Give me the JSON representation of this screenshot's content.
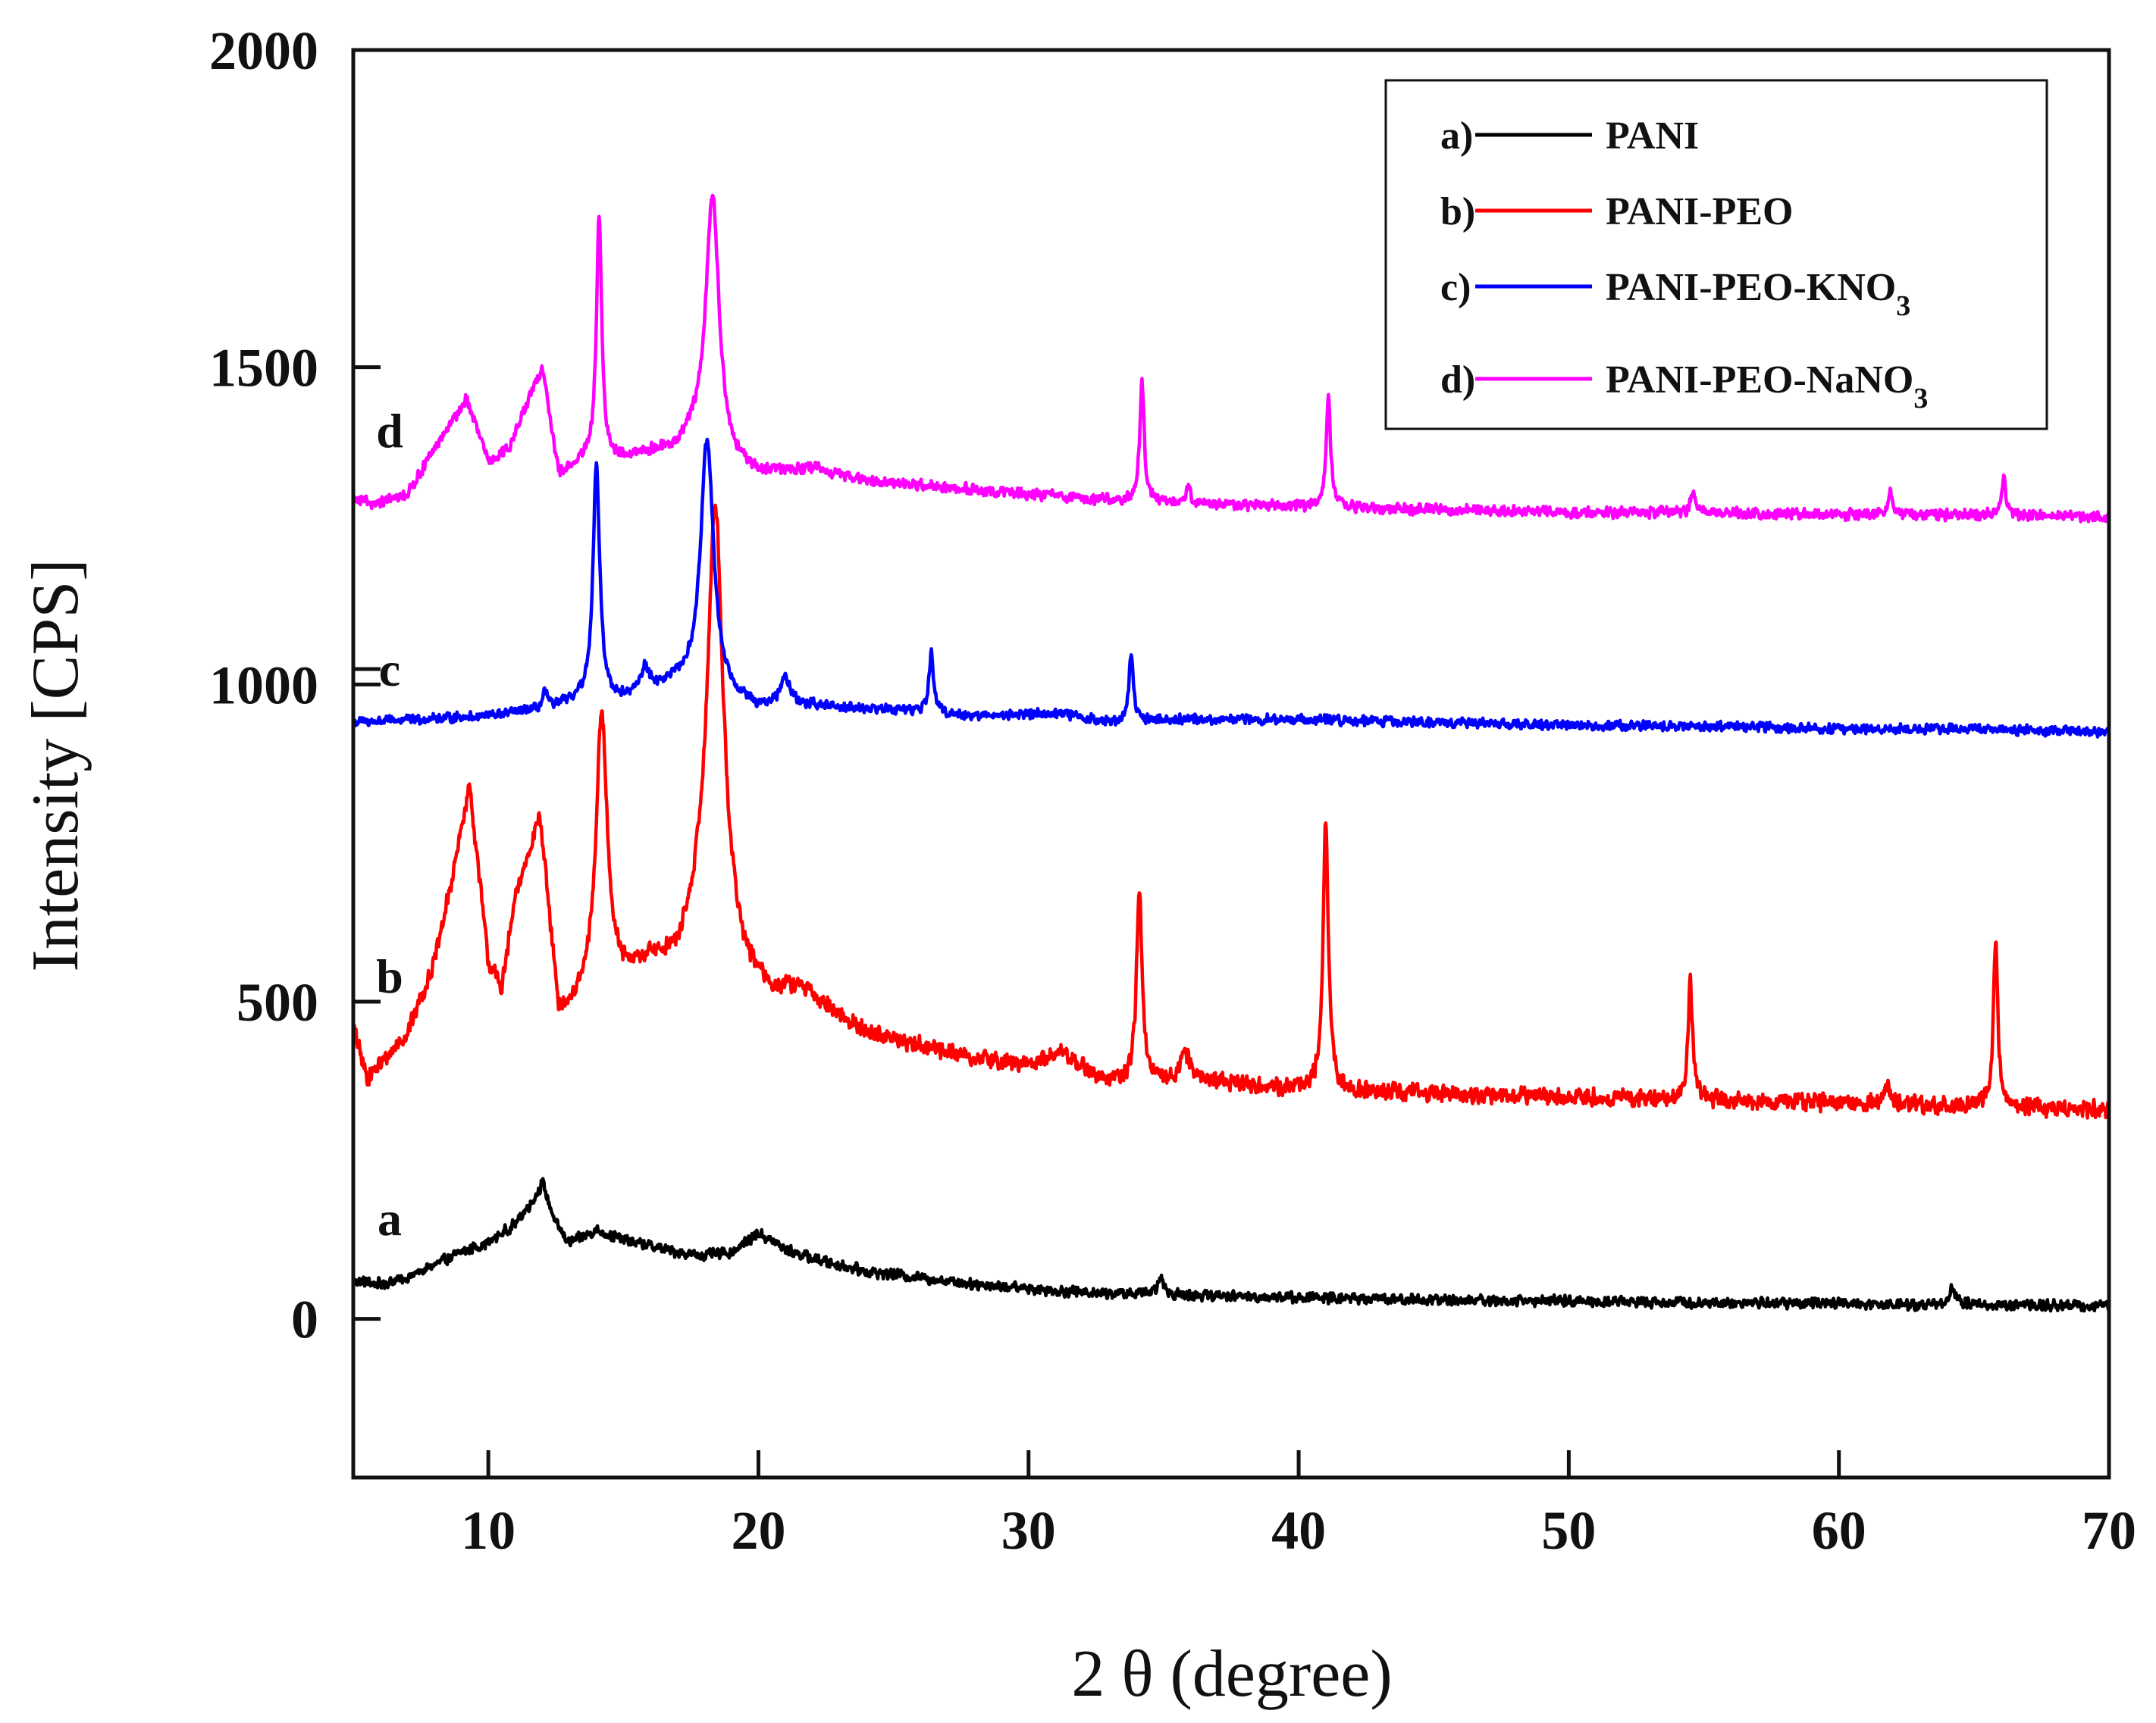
{
  "chart_data": {
    "type": "line",
    "title": "",
    "xlabel": "2 θ  (degree)",
    "ylabel": "Intensity [CPS]",
    "xlim": [
      5,
      70
    ],
    "ylim": [
      -250,
      2000
    ],
    "x_ticks": [
      10,
      20,
      30,
      40,
      50,
      60,
      70
    ],
    "y_ticks": [
      0,
      500,
      1000,
      1500,
      2000
    ],
    "legend": {
      "position": "top-right",
      "entries": [
        {
          "tag": "a)",
          "label": "PANI",
          "sub": ""
        },
        {
          "tag": "b)",
          "label": "PANI-PEO",
          "sub": ""
        },
        {
          "tag": "c)",
          "label": "PANI-PEO-KNO",
          "sub": "3"
        },
        {
          "tag": "d)",
          "label": "PANI-PEO-NaNO",
          "sub": "3"
        }
      ]
    },
    "series": [
      {
        "id": "a",
        "name": "PANI",
        "color": "#000000",
        "curve_label": "a",
        "baseline": [
          [
            5,
            60
          ],
          [
            6,
            55
          ],
          [
            7,
            65
          ],
          [
            8,
            85
          ],
          [
            9,
            105
          ],
          [
            10,
            120
          ],
          [
            11,
            150
          ],
          [
            11.7,
            190
          ],
          [
            12,
            215
          ],
          [
            12.5,
            150
          ],
          [
            13,
            120
          ],
          [
            14,
            140
          ],
          [
            15,
            125
          ],
          [
            16,
            115
          ],
          [
            17,
            105
          ],
          [
            18,
            100
          ],
          [
            19,
            105
          ],
          [
            20,
            135
          ],
          [
            21,
            110
          ],
          [
            22,
            95
          ],
          [
            24,
            75
          ],
          [
            26,
            65
          ],
          [
            28,
            55
          ],
          [
            30,
            48
          ],
          [
            32,
            42
          ],
          [
            35,
            38
          ],
          [
            40,
            34
          ],
          [
            45,
            30
          ],
          [
            50,
            28
          ],
          [
            55,
            26
          ],
          [
            60,
            24
          ],
          [
            65,
            22
          ],
          [
            70,
            20
          ]
        ],
        "peaks": [
          [
            34.9,
            25,
            0.15
          ],
          [
            64.2,
            25,
            0.15
          ]
        ],
        "noise": 10
      },
      {
        "id": "b",
        "name": "PANI-PEO",
        "color": "#ff0000",
        "curve_label": "b",
        "baseline": [
          [
            5,
            460
          ],
          [
            5.5,
            380
          ],
          [
            6,
            400
          ],
          [
            7,
            450
          ],
          [
            8,
            560
          ],
          [
            8.7,
            700
          ],
          [
            9.3,
            840
          ],
          [
            10,
            560
          ],
          [
            10.5,
            520
          ],
          [
            11,
            660
          ],
          [
            11.9,
            790
          ],
          [
            12.6,
            480
          ],
          [
            13.2,
            490
          ],
          [
            14,
            520
          ],
          [
            15,
            530
          ],
          [
            16,
            560
          ],
          [
            17,
            560
          ],
          [
            17.8,
            620
          ],
          [
            18.5,
            620
          ],
          [
            19.5,
            540
          ],
          [
            20.5,
            510
          ],
          [
            21.5,
            520
          ],
          [
            22.5,
            490
          ],
          [
            24,
            450
          ],
          [
            26,
            430
          ],
          [
            28,
            410
          ],
          [
            30,
            400
          ],
          [
            31.3,
            420
          ],
          [
            32.5,
            380
          ],
          [
            34,
            370
          ],
          [
            36,
            380
          ],
          [
            38,
            370
          ],
          [
            40,
            360
          ],
          [
            45,
            355
          ],
          [
            50,
            350
          ],
          [
            55,
            345
          ],
          [
            60,
            340
          ],
          [
            65,
            335
          ],
          [
            70,
            330
          ]
        ],
        "peaks": [
          [
            14.2,
            430,
            0.25
          ],
          [
            18.4,
            660,
            0.35
          ],
          [
            34.1,
            310,
            0.12
          ],
          [
            35.8,
            40,
            0.2
          ],
          [
            41.0,
            420,
            0.12
          ],
          [
            54.5,
            190,
            0.1
          ],
          [
            61.8,
            25,
            0.2
          ],
          [
            65.8,
            260,
            0.1
          ]
        ],
        "noise": 16
      },
      {
        "id": "c",
        "name": "PANI-PEO-KNO3",
        "color": "#0000ff",
        "curve_label": "c",
        "baseline": [
          [
            5,
            940
          ],
          [
            10,
            950
          ],
          [
            12,
            960
          ],
          [
            13.5,
            975
          ],
          [
            15,
            975
          ],
          [
            16,
            990
          ],
          [
            17,
            1000
          ],
          [
            18,
            1000
          ],
          [
            19,
            980
          ],
          [
            20,
            960
          ],
          [
            22,
            965
          ],
          [
            25,
            960
          ],
          [
            28,
            950
          ],
          [
            31,
            955
          ],
          [
            33,
            940
          ],
          [
            35,
            945
          ],
          [
            40,
            945
          ],
          [
            45,
            940
          ],
          [
            50,
            935
          ],
          [
            55,
            935
          ],
          [
            60,
            930
          ],
          [
            65,
            930
          ],
          [
            70,
            925
          ]
        ],
        "peaks": [
          [
            14.0,
            370,
            0.15
          ],
          [
            18.1,
            390,
            0.28
          ],
          [
            15.8,
            35,
            0.2
          ],
          [
            21.0,
            45,
            0.25
          ],
          [
            26.4,
            95,
            0.1
          ],
          [
            33.8,
            105,
            0.1
          ],
          [
            12.1,
            25,
            0.1
          ]
        ],
        "noise": 9
      },
      {
        "id": "d",
        "name": "PANI-PEO-NaNO3",
        "color": "#ff00ff",
        "curve_label": "d",
        "baseline": [
          [
            5,
            1290
          ],
          [
            6,
            1285
          ],
          [
            7,
            1300
          ],
          [
            8,
            1370
          ],
          [
            9.2,
            1450
          ],
          [
            10,
            1350
          ],
          [
            10.8,
            1375
          ],
          [
            12,
            1500
          ],
          [
            12.6,
            1330
          ],
          [
            13.5,
            1350
          ],
          [
            15,
            1355
          ],
          [
            16.2,
            1365
          ],
          [
            17,
            1365
          ],
          [
            17.5,
            1385
          ],
          [
            19,
            1340
          ],
          [
            20,
            1330
          ],
          [
            22,
            1340
          ],
          [
            24,
            1320
          ],
          [
            27,
            1310
          ],
          [
            30,
            1300
          ],
          [
            33,
            1290
          ],
          [
            36,
            1285
          ],
          [
            40,
            1280
          ],
          [
            45,
            1275
          ],
          [
            50,
            1272
          ],
          [
            55,
            1270
          ],
          [
            60,
            1268
          ],
          [
            65,
            1267
          ],
          [
            70,
            1265
          ]
        ],
        "peaks": [
          [
            14.1,
            380,
            0.12
          ],
          [
            18.3,
            410,
            0.3
          ],
          [
            34.2,
            185,
            0.1
          ],
          [
            41.1,
            175,
            0.1
          ],
          [
            54.6,
            35,
            0.1
          ],
          [
            61.9,
            40,
            0.1
          ],
          [
            66.1,
            60,
            0.1
          ],
          [
            35.9,
            25,
            0.12
          ]
        ],
        "noise": 10
      }
    ]
  }
}
